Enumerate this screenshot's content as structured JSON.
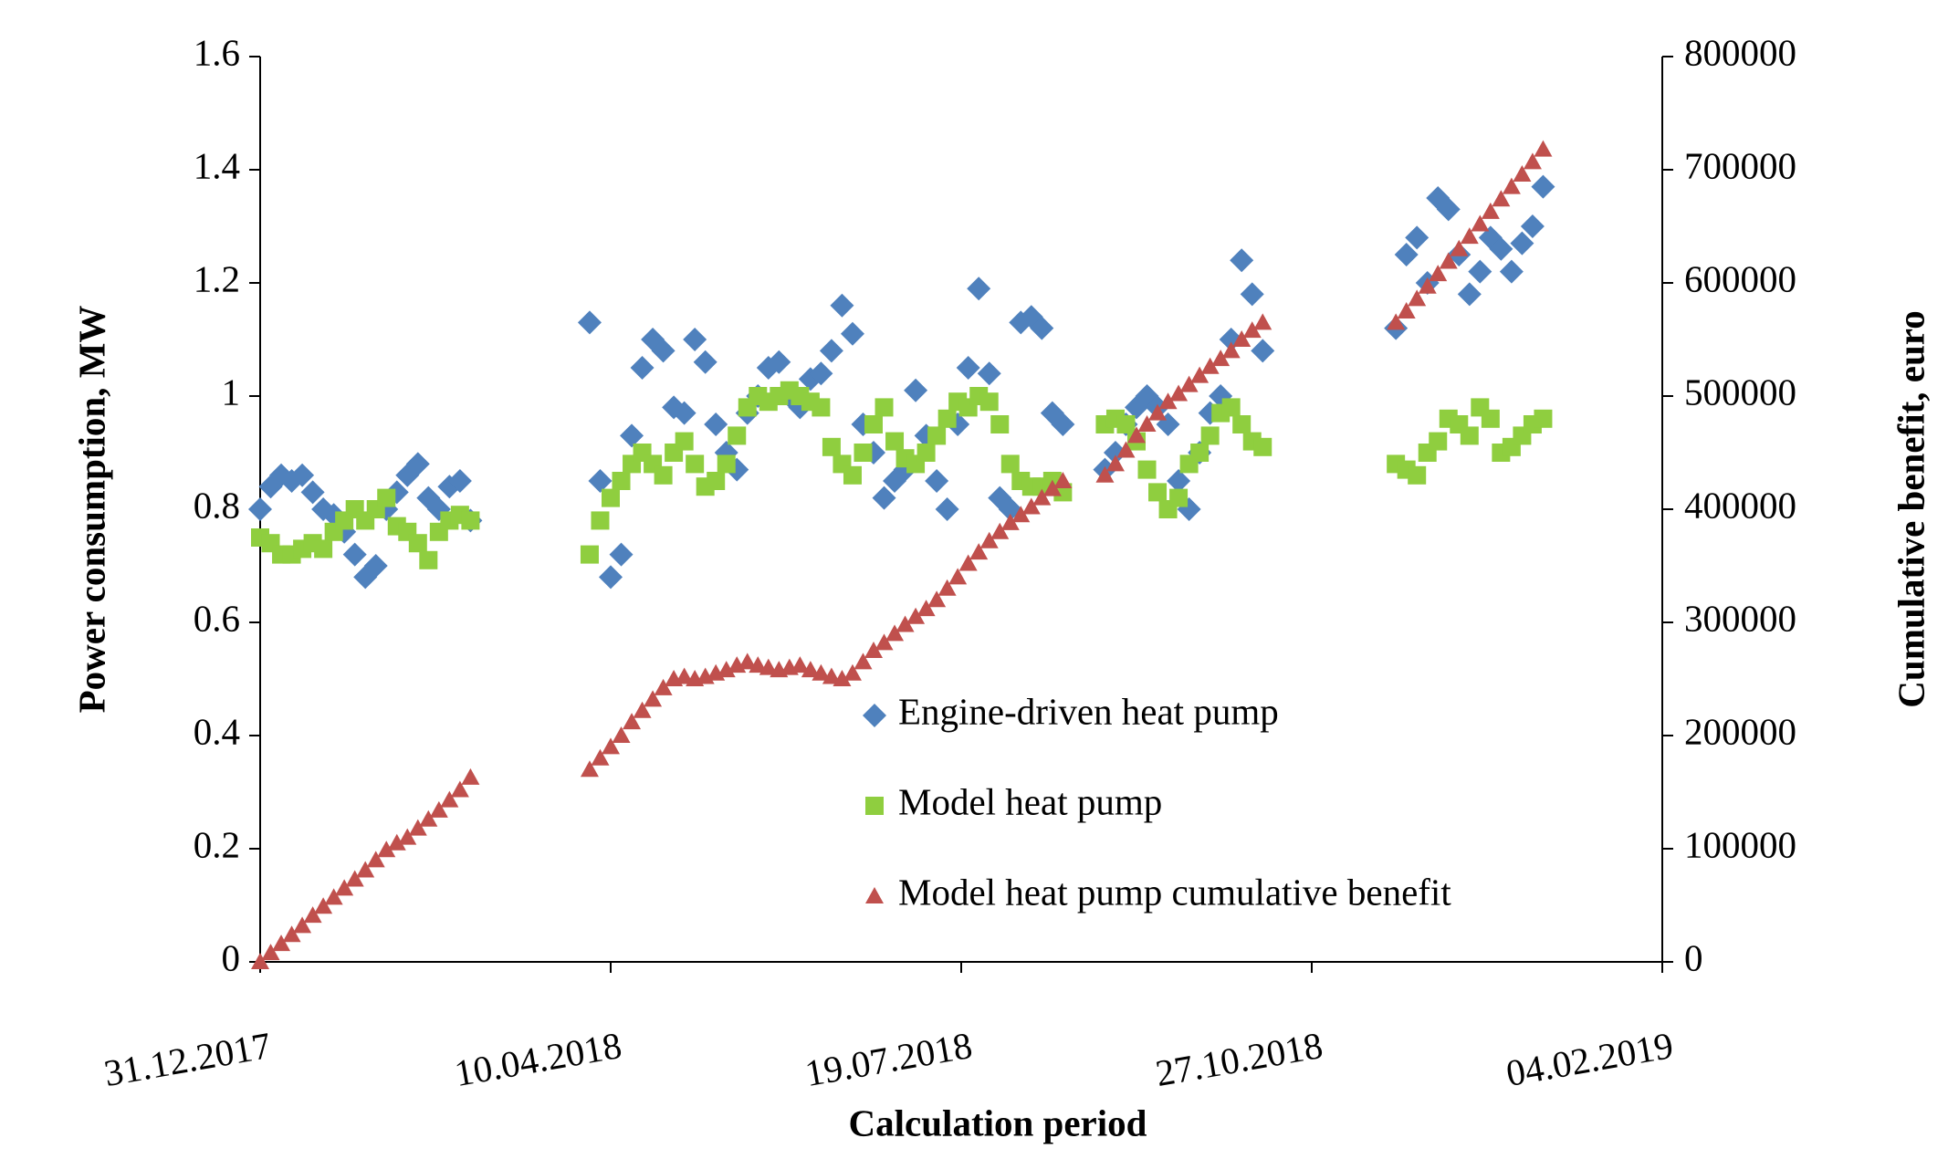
{
  "chart_data": {
    "type": "scatter",
    "x_label": "Calculation period",
    "y_label": "Power consumption, MW",
    "y2_label": "Cumulative benefit, euro",
    "x": [
      "31.12.2017",
      "03.01.2018",
      "06.01.2018",
      "09.01.2018",
      "12.01.2018",
      "15.01.2018",
      "18.01.2018",
      "21.01.2018",
      "24.01.2018",
      "27.01.2018",
      "30.01.2018",
      "02.02.2018",
      "05.02.2018",
      "08.02.2018",
      "11.02.2018",
      "14.02.2018",
      "17.02.2018",
      "20.02.2018",
      "23.02.2018",
      "26.02.2018",
      "01.03.2018",
      "04.04.2018",
      "07.04.2018",
      "10.04.2018",
      "13.04.2018",
      "16.04.2018",
      "19.04.2018",
      "22.04.2018",
      "25.04.2018",
      "28.04.2018",
      "01.05.2018",
      "04.05.2018",
      "07.05.2018",
      "10.05.2018",
      "13.05.2018",
      "16.05.2018",
      "19.05.2018",
      "22.05.2018",
      "25.05.2018",
      "28.05.2018",
      "31.05.2018",
      "03.06.2018",
      "06.06.2018",
      "09.06.2018",
      "12.06.2018",
      "15.06.2018",
      "18.06.2018",
      "21.06.2018",
      "24.06.2018",
      "27.06.2018",
      "30.06.2018",
      "03.07.2018",
      "06.07.2018",
      "09.07.2018",
      "12.07.2018",
      "15.07.2018",
      "18.07.2018",
      "21.07.2018",
      "24.07.2018",
      "27.07.2018",
      "30.07.2018",
      "02.08.2018",
      "05.08.2018",
      "08.08.2018",
      "11.08.2018",
      "14.08.2018",
      "17.08.2018",
      "29.08.2018",
      "01.09.2018",
      "04.09.2018",
      "07.09.2018",
      "10.09.2018",
      "13.09.2018",
      "16.09.2018",
      "19.09.2018",
      "22.09.2018",
      "25.09.2018",
      "28.09.2018",
      "01.10.2018",
      "04.10.2018",
      "07.10.2018",
      "10.10.2018",
      "13.10.2018",
      "20.11.2018",
      "23.11.2018",
      "26.11.2018",
      "29.11.2018",
      "02.12.2018",
      "05.12.2018",
      "08.12.2018",
      "11.12.2018",
      "14.12.2018",
      "17.12.2018",
      "20.12.2018",
      "23.12.2018",
      "26.12.2018",
      "29.12.2018",
      "01.01.2019"
    ],
    "series": [
      {
        "name": "Engine-driven heat pump",
        "color": "#4f81bd",
        "marker": "diamond",
        "values": [
          0.8,
          0.84,
          0.86,
          0.85,
          0.86,
          0.83,
          0.8,
          0.79,
          0.76,
          0.72,
          0.68,
          0.7,
          0.8,
          0.83,
          0.86,
          0.88,
          0.82,
          0.8,
          0.84,
          0.85,
          0.78,
          1.13,
          0.85,
          0.68,
          0.72,
          0.93,
          1.05,
          1.1,
          1.08,
          0.98,
          0.97,
          1.1,
          1.06,
          0.95,
          0.9,
          0.87,
          0.97,
          1.0,
          1.05,
          1.06,
          1.0,
          0.98,
          1.03,
          1.04,
          1.08,
          1.16,
          1.11,
          0.95,
          0.9,
          0.82,
          0.85,
          0.87,
          1.01,
          0.93,
          0.85,
          0.8,
          0.95,
          1.05,
          1.19,
          1.04,
          0.82,
          0.8,
          1.13,
          1.14,
          1.12,
          0.97,
          0.95,
          0.87,
          0.9,
          0.95,
          0.98,
          1.0,
          0.98,
          0.95,
          0.85,
          0.8,
          0.9,
          0.97,
          1.0,
          1.1,
          1.24,
          1.18,
          1.08,
          1.12,
          1.25,
          1.28,
          1.2,
          1.35,
          1.33,
          1.25,
          1.18,
          1.22,
          1.28,
          1.26,
          1.22,
          1.27,
          1.3,
          1.37
        ]
      },
      {
        "name": "Model heat pump",
        "color": "#8fce3f",
        "marker": "square",
        "values": [
          0.75,
          0.74,
          0.72,
          0.72,
          0.73,
          0.74,
          0.73,
          0.76,
          0.78,
          0.8,
          0.78,
          0.8,
          0.82,
          0.77,
          0.76,
          0.74,
          0.71,
          0.76,
          0.78,
          0.79,
          0.78,
          0.72,
          0.78,
          0.82,
          0.85,
          0.88,
          0.9,
          0.88,
          0.86,
          0.9,
          0.92,
          0.88,
          0.84,
          0.85,
          0.88,
          0.93,
          0.98,
          1.0,
          0.99,
          1.0,
          1.01,
          1.0,
          0.99,
          0.98,
          0.91,
          0.88,
          0.86,
          0.9,
          0.95,
          0.98,
          0.92,
          0.89,
          0.88,
          0.9,
          0.93,
          0.96,
          0.99,
          0.98,
          1.0,
          0.99,
          0.95,
          0.88,
          0.85,
          0.84,
          0.84,
          0.85,
          0.83,
          0.95,
          0.96,
          0.95,
          0.92,
          0.87,
          0.83,
          0.8,
          0.82,
          0.88,
          0.9,
          0.93,
          0.97,
          0.98,
          0.95,
          0.92,
          0.91,
          0.88,
          0.87,
          0.86,
          0.9,
          0.92,
          0.96,
          0.95,
          0.93,
          0.98,
          0.96,
          0.9,
          0.91,
          0.93,
          0.95,
          0.96
        ]
      },
      {
        "name": "Model heat pump cumulative benefit",
        "color": "#c0504d",
        "marker": "triangle",
        "axis": "y2",
        "values": [
          0,
          8000,
          16000,
          24000,
          32000,
          41000,
          49000,
          57000,
          65000,
          73000,
          81000,
          90000,
          99000,
          105000,
          110000,
          118000,
          126000,
          134000,
          143000,
          152000,
          163000,
          170000,
          180000,
          190000,
          200000,
          212000,
          222000,
          232000,
          242000,
          250000,
          252000,
          250000,
          252000,
          255000,
          258000,
          262000,
          265000,
          262000,
          260000,
          258000,
          260000,
          262000,
          258000,
          255000,
          252000,
          250000,
          255000,
          265000,
          275000,
          282000,
          290000,
          298000,
          305000,
          312000,
          320000,
          330000,
          340000,
          352000,
          362000,
          372000,
          380000,
          388000,
          395000,
          402000,
          410000,
          418000,
          425000,
          430000,
          440000,
          452000,
          465000,
          475000,
          485000,
          495000,
          502000,
          510000,
          518000,
          526000,
          533000,
          540000,
          550000,
          558000,
          565000,
          565000,
          575000,
          586000,
          597000,
          608000,
          619000,
          630000,
          641000,
          652000,
          663000,
          674000,
          685000,
          696000,
          707000,
          718000
        ]
      }
    ],
    "xlim": [
      "31.12.2017",
      "04.02.2019"
    ],
    "xticks": [
      "31.12.2017",
      "10.04.2018",
      "19.07.2018",
      "27.10.2018",
      "04.02.2019"
    ],
    "ylim": [
      0,
      1.6
    ],
    "yticks": [
      0,
      0.2,
      0.4,
      0.6,
      0.8,
      1,
      1.2,
      1.4,
      1.6
    ],
    "y2lim": [
      0,
      800000
    ],
    "y2ticks": [
      0,
      100000,
      200000,
      300000,
      400000,
      500000,
      600000,
      700000,
      800000
    ],
    "grid": false,
    "legend": "right"
  }
}
